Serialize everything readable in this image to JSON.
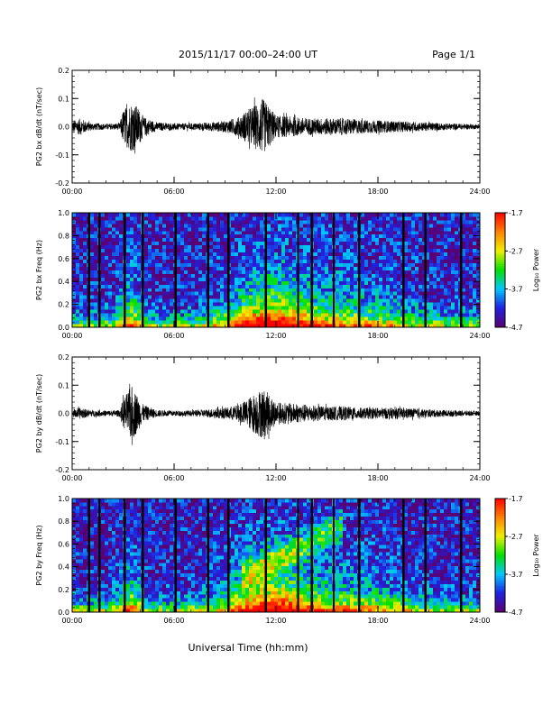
{
  "header": {
    "title": "2015/11/17  00:00–24:00 UT",
    "page_label": "Page 1/1"
  },
  "footer": {
    "xlabel": "Universal Time (hh:mm)"
  },
  "colorbar": {
    "label": "Log₁₀ Power",
    "ticks": [
      "-1.7",
      "-2.7",
      "-3.7",
      "-4.7"
    ],
    "range": [
      -4.7,
      -1.7
    ],
    "colors": [
      "#5a0070",
      "#2020e0",
      "#00c8ff",
      "#00e000",
      "#f0f000",
      "#ff8000",
      "#ff0000"
    ]
  },
  "chart_data": [
    {
      "type": "line",
      "ylabel": "PG2 bx dB/dt (nT/sec)",
      "xlim": [
        0,
        24
      ],
      "ylim": [
        -0.2,
        0.2
      ],
      "xticks": [
        "00:00",
        "06:00",
        "12:00",
        "18:00",
        "24:00"
      ],
      "yticks": [
        "0.2",
        "0.1",
        "0.0",
        "-0.1",
        "-0.2"
      ],
      "activity_envelope": {
        "x": [
          0,
          0.5,
          1,
          2,
          2.8,
          3.0,
          3.5,
          3.9,
          4.2,
          5,
          6,
          7,
          8,
          9,
          9.8,
          10.3,
          10.8,
          11.2,
          11.6,
          12,
          13,
          14,
          15,
          16,
          17,
          18,
          19,
          20,
          21,
          22,
          23,
          24
        ],
        "y": [
          0.02,
          0.03,
          0.015,
          0.01,
          0.012,
          0.06,
          0.09,
          0.07,
          0.035,
          0.015,
          0.012,
          0.012,
          0.015,
          0.02,
          0.035,
          0.06,
          0.08,
          0.1,
          0.075,
          0.04,
          0.035,
          0.03,
          0.03,
          0.03,
          0.025,
          0.022,
          0.02,
          0.018,
          0.015,
          0.012,
          0.01,
          0.008
        ]
      }
    },
    {
      "type": "heatmap",
      "ylabel": "PG2 bx Freq (Hz)",
      "xlim": [
        0,
        24
      ],
      "ylim": [
        0,
        1
      ],
      "xticks": [
        "00:00",
        "06:00",
        "12:00",
        "18:00",
        "24:00"
      ],
      "yticks": [
        "1.0",
        "0.8",
        "0.6",
        "0.4",
        "0.2",
        "0.0"
      ],
      "zlim": [
        -4.7,
        -1.7
      ],
      "gaps_hours": [
        1.0,
        1.6,
        3.1,
        4.15,
        6.1,
        8.0,
        9.2,
        11.4,
        13.3,
        14.1,
        15.4,
        16.9,
        19.5,
        20.8,
        22.9
      ]
    },
    {
      "type": "line",
      "ylabel": "PG2 by dB/dt (nT/sec)",
      "xlim": [
        0,
        24
      ],
      "ylim": [
        -0.2,
        0.2
      ],
      "xticks": [
        "00:00",
        "06:00",
        "12:00",
        "18:00",
        "24:00"
      ],
      "yticks": [
        "0.2",
        "0.1",
        "0.0",
        "-0.1",
        "-0.2"
      ],
      "activity_envelope": {
        "x": [
          0,
          0.5,
          1,
          2,
          2.8,
          3.0,
          3.5,
          3.9,
          4.2,
          5,
          6,
          7,
          8,
          9,
          9.8,
          10.3,
          10.8,
          11.2,
          11.6,
          12,
          13,
          14,
          15,
          16,
          17,
          18,
          19,
          20,
          21,
          22,
          23,
          24
        ],
        "y": [
          0.015,
          0.02,
          0.012,
          0.01,
          0.012,
          0.05,
          0.1,
          0.06,
          0.03,
          0.012,
          0.01,
          0.01,
          0.015,
          0.02,
          0.03,
          0.05,
          0.075,
          0.09,
          0.07,
          0.04,
          0.035,
          0.03,
          0.025,
          0.025,
          0.02,
          0.02,
          0.02,
          0.018,
          0.014,
          0.012,
          0.01,
          0.008
        ]
      }
    },
    {
      "type": "heatmap",
      "ylabel": "PG2 by Freq (Hz)",
      "xlim": [
        0,
        24
      ],
      "ylim": [
        0,
        1
      ],
      "xticks": [
        "00:00",
        "06:00",
        "12:00",
        "18:00",
        "24:00"
      ],
      "yticks": [
        "1.0",
        "0.8",
        "0.6",
        "0.4",
        "0.2",
        "0.0"
      ],
      "zlim": [
        -4.7,
        -1.7
      ],
      "gaps_hours": [
        1.0,
        1.6,
        3.1,
        4.15,
        6.1,
        8.0,
        9.2,
        11.4,
        13.3,
        14.1,
        15.4,
        16.9,
        19.5,
        20.8,
        22.9
      ]
    }
  ]
}
